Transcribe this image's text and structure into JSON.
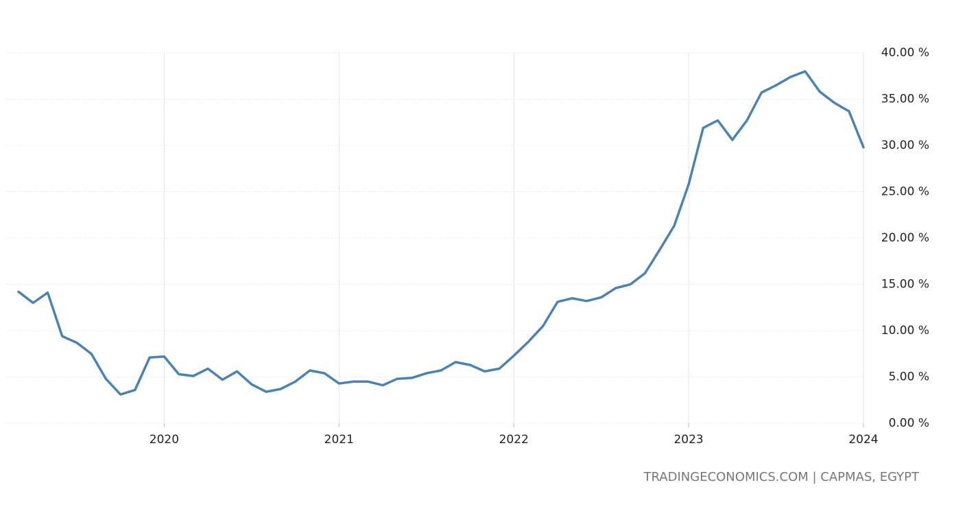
{
  "chart_data": {
    "type": "line",
    "source": "TRADINGECONOMICS.COM | CAPMAS, EGYPT",
    "categories": [
      null,
      null,
      null,
      null,
      null,
      null,
      null,
      null,
      null,
      null,
      "2020",
      null,
      null,
      null,
      null,
      null,
      null,
      null,
      null,
      null,
      null,
      null,
      "2021",
      null,
      null,
      null,
      null,
      null,
      null,
      null,
      null,
      null,
      null,
      null,
      "2022",
      null,
      null,
      null,
      null,
      null,
      null,
      null,
      null,
      null,
      null,
      null,
      "2023",
      null,
      null,
      null,
      null,
      null,
      null,
      null,
      null,
      null,
      null,
      null,
      "2024"
    ],
    "values": [
      14.2,
      13.0,
      14.1,
      9.4,
      8.7,
      7.5,
      4.8,
      3.1,
      3.6,
      7.1,
      7.2,
      5.3,
      5.1,
      5.9,
      4.7,
      5.6,
      4.2,
      3.4,
      3.7,
      4.5,
      5.7,
      5.4,
      4.3,
      4.5,
      4.5,
      4.1,
      4.8,
      4.9,
      5.4,
      5.7,
      6.6,
      6.3,
      5.6,
      5.9,
      7.3,
      8.8,
      10.5,
      13.1,
      13.5,
      13.2,
      13.6,
      14.6,
      15.0,
      16.2,
      18.7,
      21.3,
      25.8,
      31.9,
      32.7,
      30.6,
      32.7,
      35.7,
      36.5,
      37.4,
      38.0,
      35.8,
      34.6,
      33.7,
      29.8
    ],
    "color": "#4a82b4",
    "ylim": [
      0,
      40
    ],
    "yticks": [
      {
        "value": 0,
        "label": "0.00 %"
      },
      {
        "value": 5,
        "label": "5.00 %"
      },
      {
        "value": 10,
        "label": "10.00 %"
      },
      {
        "value": 15,
        "label": "15.00 %"
      },
      {
        "value": 20,
        "label": "20.00 %"
      },
      {
        "value": 25,
        "label": "25.00 %"
      },
      {
        "value": 30,
        "label": "30.00 %"
      },
      {
        "value": 35,
        "label": "35.00 %"
      },
      {
        "value": 40,
        "label": "40.00 %"
      }
    ],
    "grid": true
  }
}
